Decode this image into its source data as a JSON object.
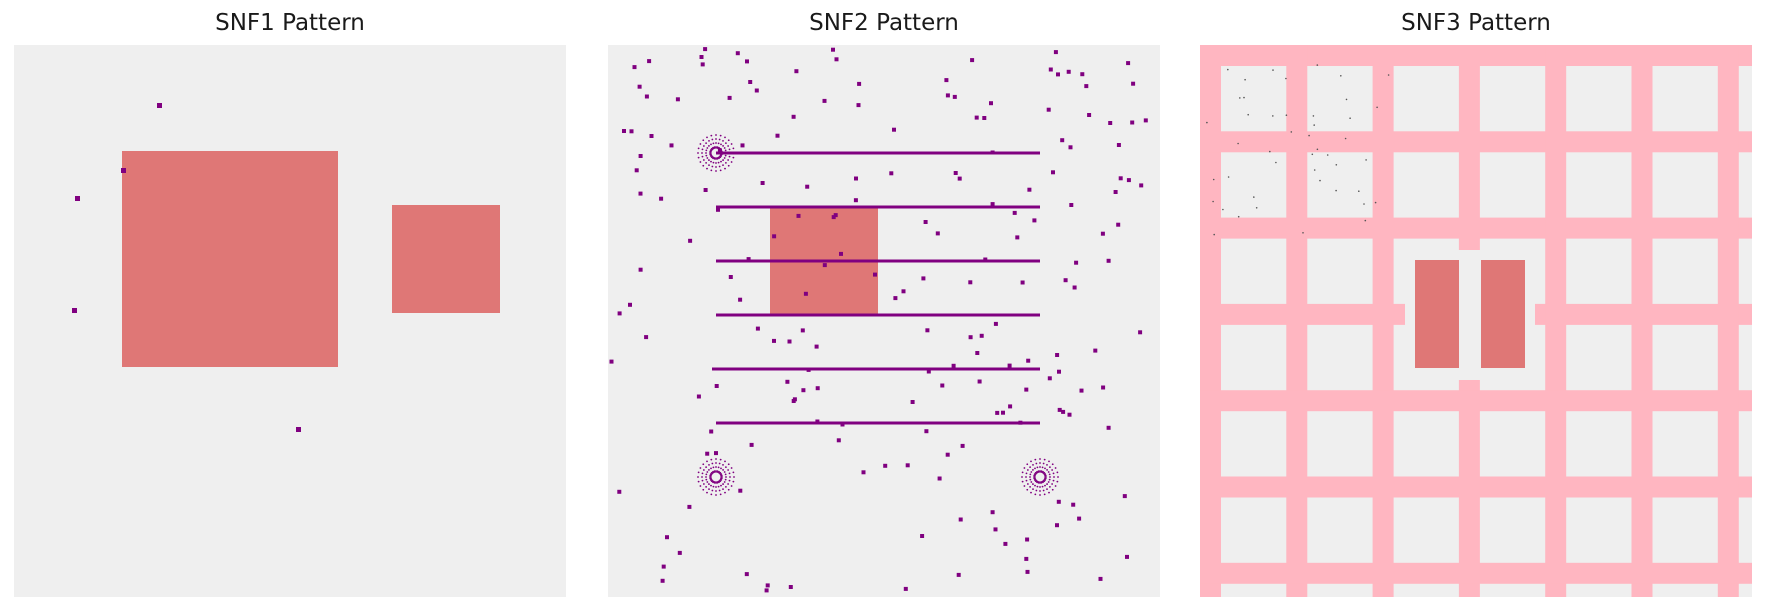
{
  "panels": [
    {
      "title": "SNF1 Pattern"
    },
    {
      "title": "SNF2 Pattern"
    },
    {
      "title": "SNF3 Pattern"
    }
  ],
  "colors": {
    "background": "#efefef",
    "block": "#df7776",
    "dot": "#800080",
    "line": "#800080",
    "grid": "#ffb6c1"
  }
}
